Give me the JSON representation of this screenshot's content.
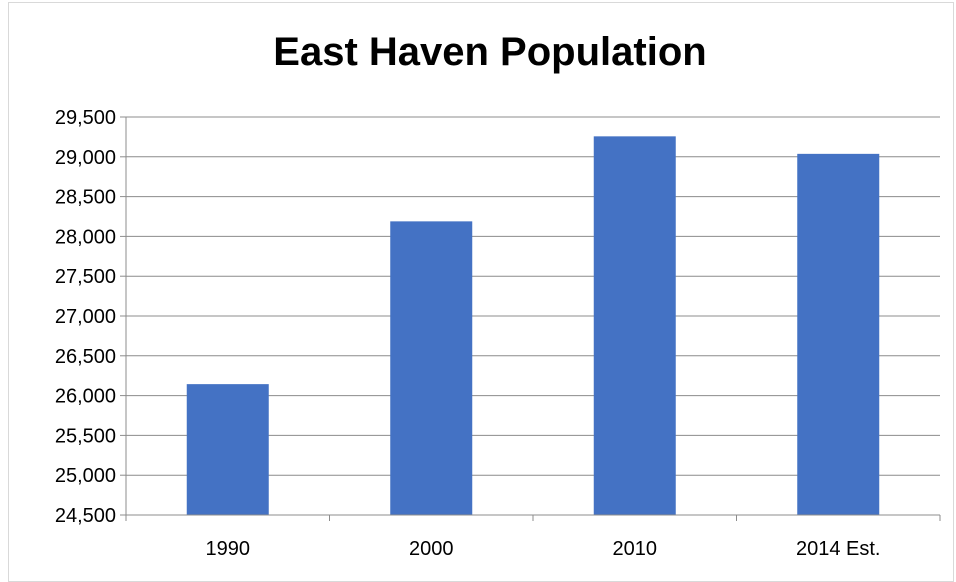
{
  "chart_data": {
    "type": "bar",
    "title": "East Haven Population",
    "xlabel": "",
    "ylabel": "",
    "categories": [
      "1990",
      "2000",
      "2010",
      "2014 Est."
    ],
    "values": [
      26144,
      28189,
      29257,
      29037
    ],
    "ylim": [
      24500,
      29500
    ],
    "yticks": [
      24500,
      25000,
      25500,
      26000,
      26500,
      27000,
      27500,
      28000,
      28500,
      29000,
      29500
    ],
    "ytick_labels": [
      "24,500",
      "25,000",
      "25,500",
      "26,000",
      "26,500",
      "27,000",
      "27,500",
      "28,000",
      "28,500",
      "29,000",
      "29,500"
    ],
    "grid": true,
    "legend": "none",
    "bar_color": "#4472c4",
    "grid_color": "#8c8c8c"
  }
}
